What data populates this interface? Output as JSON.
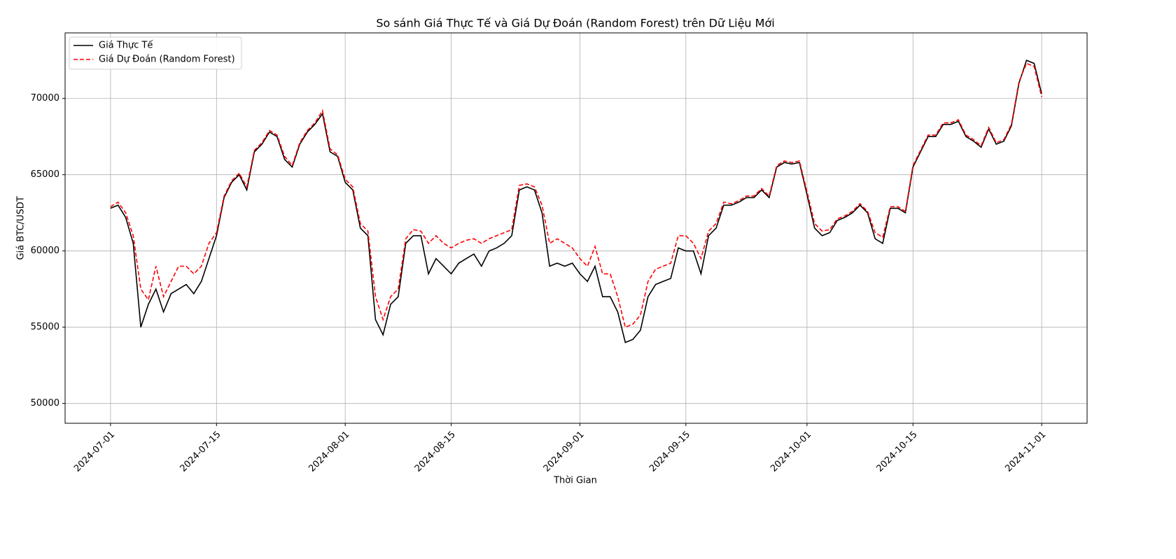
{
  "chart_data": {
    "type": "line",
    "title": "So sánh Giá Thực Tế và Giá Dự Đoán (Random Forest) trên Dữ Liệu Mới",
    "xlabel": "Thời Gian",
    "ylabel": "Giá BTC/USDT",
    "x": [
      "2024-07-01",
      "2024-07-02",
      "2024-07-03",
      "2024-07-04",
      "2024-07-05",
      "2024-07-06",
      "2024-07-07",
      "2024-07-08",
      "2024-07-09",
      "2024-07-10",
      "2024-07-11",
      "2024-07-12",
      "2024-07-13",
      "2024-07-14",
      "2024-07-15",
      "2024-07-16",
      "2024-07-17",
      "2024-07-18",
      "2024-07-19",
      "2024-07-20",
      "2024-07-21",
      "2024-07-22",
      "2024-07-23",
      "2024-07-24",
      "2024-07-25",
      "2024-07-26",
      "2024-07-27",
      "2024-07-28",
      "2024-07-29",
      "2024-07-30",
      "2024-07-31",
      "2024-08-01",
      "2024-08-02",
      "2024-08-03",
      "2024-08-04",
      "2024-08-05",
      "2024-08-06",
      "2024-08-07",
      "2024-08-08",
      "2024-08-09",
      "2024-08-10",
      "2024-08-11",
      "2024-08-12",
      "2024-08-13",
      "2024-08-14",
      "2024-08-15",
      "2024-08-16",
      "2024-08-17",
      "2024-08-18",
      "2024-08-19",
      "2024-08-20",
      "2024-08-21",
      "2024-08-22",
      "2024-08-23",
      "2024-08-24",
      "2024-08-25",
      "2024-08-26",
      "2024-08-27",
      "2024-08-28",
      "2024-08-29",
      "2024-08-30",
      "2024-08-31",
      "2024-09-01",
      "2024-09-02",
      "2024-09-03",
      "2024-09-04",
      "2024-09-05",
      "2024-09-06",
      "2024-09-07",
      "2024-09-08",
      "2024-09-09",
      "2024-09-10",
      "2024-09-11",
      "2024-09-12",
      "2024-09-13",
      "2024-09-14",
      "2024-09-15",
      "2024-09-16",
      "2024-09-17",
      "2024-09-18",
      "2024-09-19",
      "2024-09-20",
      "2024-09-21",
      "2024-09-22",
      "2024-09-23",
      "2024-09-24",
      "2024-09-25",
      "2024-09-26",
      "2024-09-27",
      "2024-09-28",
      "2024-09-29",
      "2024-09-30",
      "2024-10-01",
      "2024-10-02",
      "2024-10-03",
      "2024-10-04",
      "2024-10-05",
      "2024-10-06",
      "2024-10-07",
      "2024-10-08",
      "2024-10-09",
      "2024-10-10",
      "2024-10-11",
      "2024-10-12",
      "2024-10-13",
      "2024-10-14",
      "2024-10-15",
      "2024-10-16",
      "2024-10-17",
      "2024-10-18",
      "2024-10-19",
      "2024-10-20",
      "2024-10-21",
      "2024-10-22",
      "2024-10-23",
      "2024-10-24",
      "2024-10-25",
      "2024-10-26",
      "2024-10-27",
      "2024-10-28",
      "2024-10-29",
      "2024-10-30",
      "2024-10-31",
      "2024-11-01"
    ],
    "series": [
      {
        "name": "Giá Thực Tế",
        "color": "#000000",
        "linestyle": "solid",
        "values": [
          62800,
          63000,
          62200,
          60500,
          55000,
          56500,
          57500,
          56000,
          57200,
          57500,
          57800,
          57200,
          58000,
          59500,
          61000,
          63500,
          64500,
          65000,
          64000,
          66500,
          67000,
          67800,
          67500,
          66000,
          65500,
          67000,
          67800,
          68300,
          69000,
          66500,
          66200,
          64500,
          64000,
          61500,
          61000,
          55500,
          54500,
          56500,
          57000,
          60500,
          61000,
          61000,
          58500,
          59500,
          59000,
          58500,
          59200,
          59500,
          59800,
          59000,
          60000,
          60200,
          60500,
          61000,
          64000,
          64200,
          64000,
          62500,
          59000,
          59200,
          59000,
          59200,
          58500,
          58000,
          59000,
          57000,
          57000,
          56000,
          54000,
          54200,
          54800,
          57000,
          57800,
          58000,
          58200,
          60200,
          60000,
          60000,
          58500,
          61000,
          61500,
          63000,
          63000,
          63200,
          63500,
          63500,
          64000,
          63500,
          65500,
          65800,
          65700,
          65800,
          63700,
          61500,
          61000,
          61200,
          62000,
          62200,
          62500,
          63000,
          62500,
          60800,
          60500,
          62800,
          62800,
          62500,
          65500,
          66500,
          67500,
          67500,
          68300,
          68300,
          68500,
          67500,
          67200,
          66800,
          68000,
          67000,
          67200,
          68200,
          71000,
          72500,
          72300,
          70300
        ]
      },
      {
        "name": "Giá Dự Đoán (Random Forest)",
        "color": "#ff0000",
        "linestyle": "dashed",
        "values": [
          62900,
          63200,
          62500,
          61000,
          57500,
          56800,
          59000,
          57000,
          58000,
          59000,
          59000,
          58500,
          59000,
          60500,
          61200,
          63600,
          64600,
          65100,
          64200,
          66600,
          67100,
          67900,
          67600,
          66200,
          65600,
          67100,
          67900,
          68400,
          69200,
          66700,
          66300,
          64700,
          64200,
          61800,
          61300,
          57000,
          55500,
          57000,
          57500,
          60800,
          61400,
          61300,
          60500,
          61000,
          60500,
          60200,
          60500,
          60700,
          60800,
          60500,
          60800,
          61000,
          61200,
          61400,
          64300,
          64400,
          64200,
          63000,
          60500,
          60800,
          60500,
          60200,
          59500,
          59000,
          60300,
          58500,
          58500,
          57000,
          55000,
          55200,
          55800,
          58000,
          58800,
          59000,
          59200,
          61000,
          61000,
          60500,
          59500,
          61300,
          61800,
          63200,
          63100,
          63300,
          63600,
          63600,
          64100,
          63600,
          65600,
          65900,
          65800,
          65900,
          63900,
          61800,
          61300,
          61400,
          62100,
          62300,
          62600,
          63100,
          62600,
          61200,
          60900,
          62900,
          62900,
          62600,
          65600,
          66600,
          67600,
          67600,
          68400,
          68400,
          68600,
          67600,
          67300,
          66900,
          68100,
          67100,
          67300,
          68300,
          71100,
          72300,
          72100,
          70100
        ]
      }
    ],
    "xlim": [
      "2024-06-25",
      "2024-11-07"
    ],
    "xticks": [
      "2024-07-01",
      "2024-07-15",
      "2024-08-01",
      "2024-08-15",
      "2024-09-01",
      "2024-09-15",
      "2024-10-01",
      "2024-10-15",
      "2024-11-01"
    ],
    "ylim": [
      48700,
      74300
    ],
    "yticks": [
      50000,
      55000,
      60000,
      65000,
      70000
    ],
    "grid": true,
    "legend": "upper left"
  }
}
